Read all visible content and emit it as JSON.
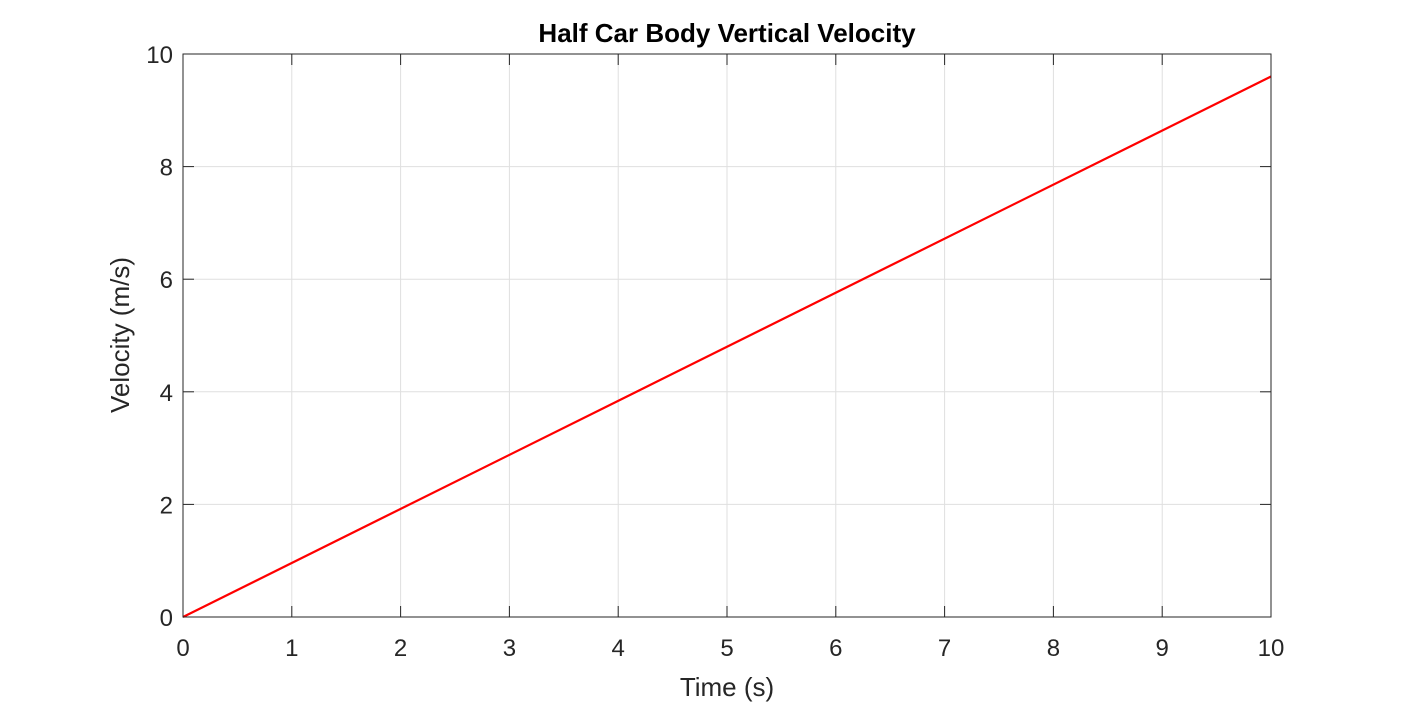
{
  "chart_data": {
    "type": "line",
    "title": "Half Car Body Vertical Velocity",
    "xlabel": "Time (s)",
    "ylabel": "Velocity (m/s)",
    "xlim": [
      0,
      10
    ],
    "ylim": [
      0,
      10
    ],
    "xticks": [
      "0",
      "1",
      "2",
      "3",
      "4",
      "5",
      "6",
      "7",
      "8",
      "9",
      "10"
    ],
    "yticks": [
      "0",
      "2",
      "4",
      "6",
      "8",
      "10"
    ],
    "grid": true,
    "series": [
      {
        "color": "#ff0000",
        "x": [
          0,
          10
        ],
        "y": [
          0,
          9.6
        ]
      }
    ]
  }
}
